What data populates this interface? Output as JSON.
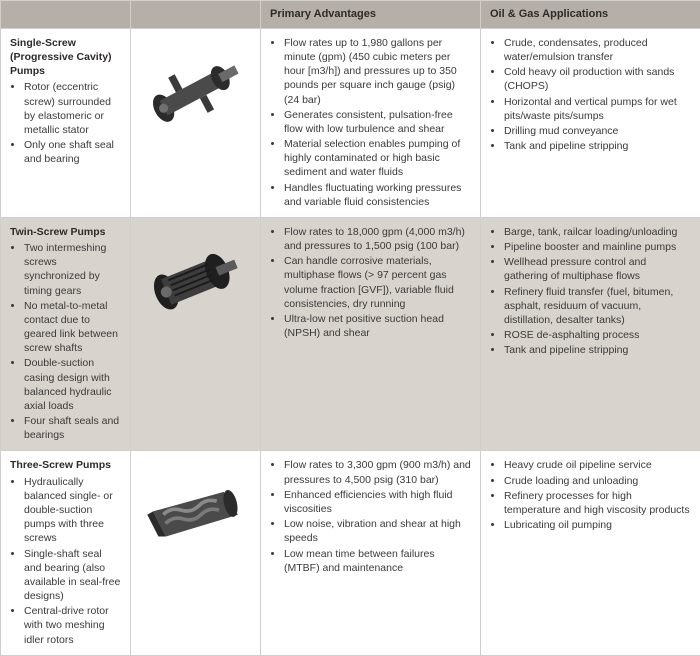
{
  "header": {
    "col_type": "",
    "col_img": "",
    "col_adv": "Primary Advantages",
    "col_app": "Oil & Gas Applications"
  },
  "colors": {
    "header_bg": "#b6afa9",
    "alt_row_bg": "#d9d3cd",
    "plain_row_bg": "#ffffff",
    "border": "#cfcfcf",
    "text": "#3a3a3a",
    "title": "#2d2a28"
  },
  "rows": [
    {
      "row_class": "plain",
      "title": "Single-Screw (Progressive Cavity) Pumps",
      "features": [
        "Rotor (eccentric screw) surrounded by elastomeric or metallic stator",
        "Only one shaft seal and bearing"
      ],
      "image_name": "single-screw-pump",
      "advantages": [
        "Flow rates up to 1,980 gallons per minute (gpm) (450 cubic meters per hour [m3/h]) and pressures up to 350 pounds per square inch gauge (psig) (24 bar)",
        "Generates consistent, pulsation-free flow with low turbulence and shear",
        "Material selection enables pumping of highly contaminated or high basic sediment and water fluids",
        "Handles fluctuating working pressures and variable fluid consistencies"
      ],
      "applications": [
        "Crude, condensates, produced water/emulsion transfer",
        "Cold heavy oil production with sands (CHOPS)",
        "Horizontal and vertical pumps for wet pits/waste pits/sumps",
        "Drilling mud conveyance",
        "Tank and pipeline stripping"
      ]
    },
    {
      "row_class": "alt",
      "title": "Twin-Screw Pumps",
      "features": [
        "Two intermeshing screws synchronized by timing gears",
        "No metal-to-metal contact due to geared link between screw shafts",
        "Double-suction casing design with balanced hydraulic axial loads",
        "Four shaft seals and bearings"
      ],
      "image_name": "twin-screw-pump",
      "advantages": [
        "Flow rates to 18,000 gpm (4,000 m3/h) and pressures to 1,500 psig (100 bar)",
        "Can handle corrosive materials, multiphase flows (> 97 percent gas volume fraction [GVF]), variable fluid consistencies, dry running",
        "Ultra-low net positive suction head (NPSH) and shear"
      ],
      "applications": [
        "Barge, tank, railcar loading/unloading",
        "Pipeline booster and mainline pumps",
        "Wellhead pressure control and gathering of multiphase flows",
        "Refinery fluid transfer (fuel, bitumen, asphalt, residuum of vacuum, distillation, desalter tanks)",
        "ROSE de-asphalting process",
        "Tank and pipeline stripping"
      ]
    },
    {
      "row_class": "plain",
      "title": "Three-Screw Pumps",
      "features": [
        "Hydraulically balanced single- or double-suction pumps with three screws",
        "Single-shaft seal and bearing (also available in seal-free designs)",
        "Central-drive rotor with two meshing idler rotors"
      ],
      "image_name": "three-screw-pump",
      "advantages": [
        "Flow rates to 3,300 gpm (900 m3/h) and pressures to 4,500 psig (310 bar)",
        "Enhanced efficiencies with high fluid viscosities",
        "Low noise, vibration and shear at high speeds",
        "Low mean time between failures (MTBF) and maintenance"
      ],
      "applications": [
        "Heavy crude oil pipeline service",
        "Crude loading and unloading",
        "Refinery processes for high temperature and high viscosity products",
        "Lubricating oil pumping"
      ]
    }
  ]
}
